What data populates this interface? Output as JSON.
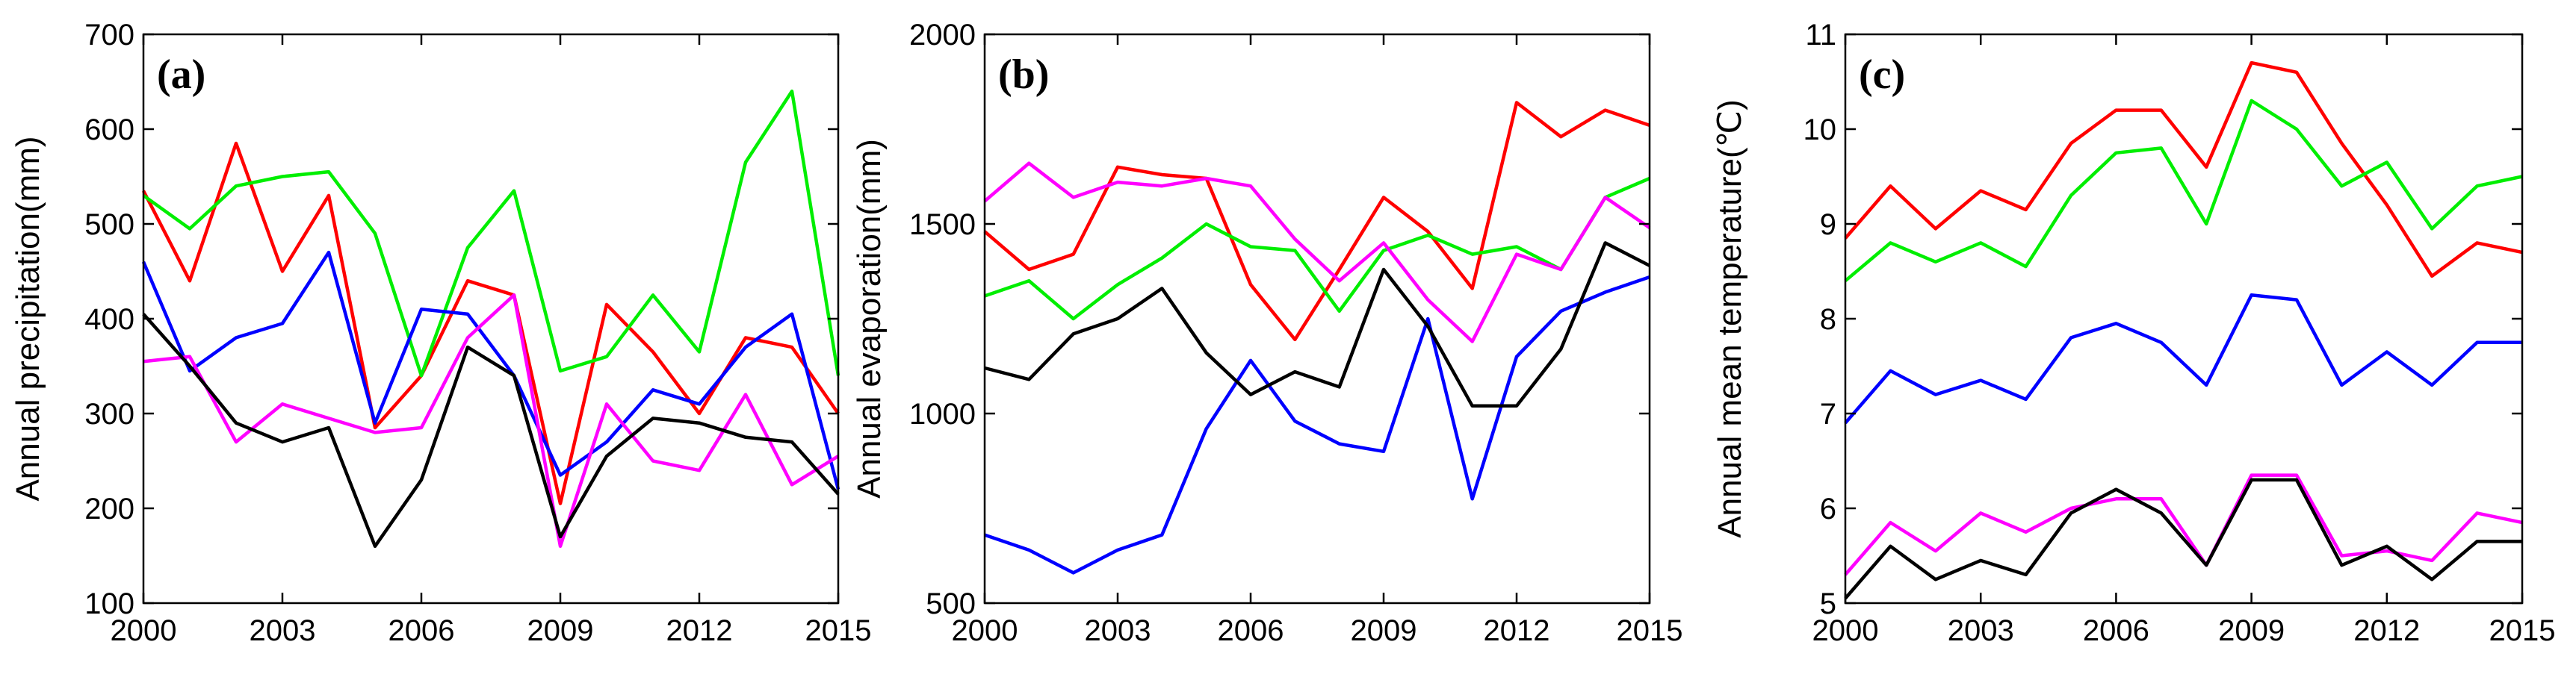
{
  "chart_data": [
    {
      "type": "line",
      "panel_label": "(a)",
      "ylabel": "Annual precipitation(mm)",
      "xlim": [
        2000,
        2015
      ],
      "ylim": [
        100,
        700
      ],
      "xticks": [
        2000,
        2003,
        2006,
        2009,
        2012,
        2015
      ],
      "yticks": [
        100,
        200,
        300,
        400,
        500,
        600,
        700
      ],
      "x": [
        2000,
        2001,
        2002,
        2003,
        2004,
        2005,
        2006,
        2007,
        2008,
        2009,
        2010,
        2011,
        2012,
        2013,
        2014,
        2015
      ],
      "series": [
        {
          "color": "#ff0000",
          "values": [
            535,
            440,
            585,
            450,
            530,
            285,
            340,
            440,
            425,
            205,
            415,
            365,
            300,
            380,
            370,
            300
          ]
        },
        {
          "color": "#00ee00",
          "values": [
            530,
            495,
            540,
            550,
            555,
            490,
            340,
            475,
            535,
            345,
            360,
            425,
            365,
            565,
            640,
            340
          ]
        },
        {
          "color": "#0000ff",
          "values": [
            460,
            345,
            380,
            395,
            470,
            290,
            410,
            405,
            340,
            235,
            270,
            325,
            310,
            370,
            405,
            220
          ]
        },
        {
          "color": "#ff00ff",
          "values": [
            355,
            360,
            270,
            310,
            295,
            280,
            285,
            380,
            425,
            160,
            310,
            250,
            240,
            320,
            225,
            255
          ]
        },
        {
          "color": "#000000",
          "values": [
            405,
            350,
            290,
            270,
            285,
            160,
            230,
            370,
            340,
            170,
            255,
            295,
            290,
            275,
            270,
            215
          ]
        }
      ]
    },
    {
      "type": "line",
      "panel_label": "(b)",
      "ylabel": "Annual evaporation(mm)",
      "xlim": [
        2000,
        2015
      ],
      "ylim": [
        500,
        2000
      ],
      "xticks": [
        2000,
        2003,
        2006,
        2009,
        2012,
        2015
      ],
      "yticks": [
        500,
        1000,
        1500,
        2000
      ],
      "x": [
        2000,
        2001,
        2002,
        2003,
        2004,
        2005,
        2006,
        2007,
        2008,
        2009,
        2010,
        2011,
        2012,
        2013,
        2014,
        2015
      ],
      "series": [
        {
          "color": "#ff0000",
          "values": [
            1480,
            1380,
            1420,
            1650,
            1630,
            1620,
            1340,
            1195,
            1380,
            1570,
            1480,
            1330,
            1820,
            1730,
            1800,
            1760
          ]
        },
        {
          "color": "#00ee00",
          "values": [
            1310,
            1350,
            1250,
            1340,
            1410,
            1500,
            1440,
            1430,
            1270,
            1430,
            1470,
            1420,
            1440,
            1380,
            1570,
            1620
          ]
        },
        {
          "color": "#0000ff",
          "values": [
            680,
            640,
            580,
            640,
            680,
            960,
            1140,
            980,
            920,
            900,
            1250,
            775,
            1150,
            1270,
            1320,
            1360
          ]
        },
        {
          "color": "#ff00ff",
          "values": [
            1560,
            1660,
            1570,
            1610,
            1600,
            1620,
            1600,
            1460,
            1350,
            1450,
            1300,
            1190,
            1420,
            1380,
            1570,
            1490
          ]
        },
        {
          "color": "#000000",
          "values": [
            1120,
            1090,
            1210,
            1250,
            1330,
            1160,
            1050,
            1110,
            1070,
            1380,
            1230,
            1020,
            1020,
            1170,
            1450,
            1390
          ]
        }
      ]
    },
    {
      "type": "line",
      "panel_label": "(c)",
      "ylabel": "Annual mean temperature(℃)",
      "xlim": [
        2000,
        2015
      ],
      "ylim": [
        5,
        11
      ],
      "xticks": [
        2000,
        2003,
        2006,
        2009,
        2012,
        2015
      ],
      "yticks": [
        5,
        6,
        7,
        8,
        9,
        10,
        11
      ],
      "x": [
        2000,
        2001,
        2002,
        2003,
        2004,
        2005,
        2006,
        2007,
        2008,
        2009,
        2010,
        2011,
        2012,
        2013,
        2014,
        2015
      ],
      "series": [
        {
          "color": "#ff0000",
          "values": [
            8.85,
            9.4,
            8.95,
            9.35,
            9.15,
            9.85,
            10.2,
            10.2,
            9.6,
            10.7,
            10.6,
            9.85,
            9.2,
            8.45,
            8.8,
            8.7
          ]
        },
        {
          "color": "#00ee00",
          "values": [
            8.4,
            8.8,
            8.6,
            8.8,
            8.55,
            9.3,
            9.75,
            9.8,
            9.0,
            10.3,
            10.0,
            9.4,
            9.65,
            8.95,
            9.4,
            9.5
          ]
        },
        {
          "color": "#0000ff",
          "values": [
            6.9,
            7.45,
            7.2,
            7.35,
            7.15,
            7.8,
            7.95,
            7.75,
            7.3,
            8.25,
            8.2,
            7.3,
            7.65,
            7.3,
            7.75,
            7.75
          ]
        },
        {
          "color": "#ff00ff",
          "values": [
            5.3,
            5.85,
            5.55,
            5.95,
            5.75,
            6.0,
            6.1,
            6.1,
            5.4,
            6.35,
            6.35,
            5.5,
            5.55,
            5.45,
            5.95,
            5.85
          ]
        },
        {
          "color": "#000000",
          "values": [
            5.05,
            5.6,
            5.25,
            5.45,
            5.3,
            5.95,
            6.2,
            5.95,
            5.4,
            6.3,
            6.3,
            5.4,
            5.6,
            5.25,
            5.65,
            5.65
          ]
        }
      ]
    }
  ]
}
